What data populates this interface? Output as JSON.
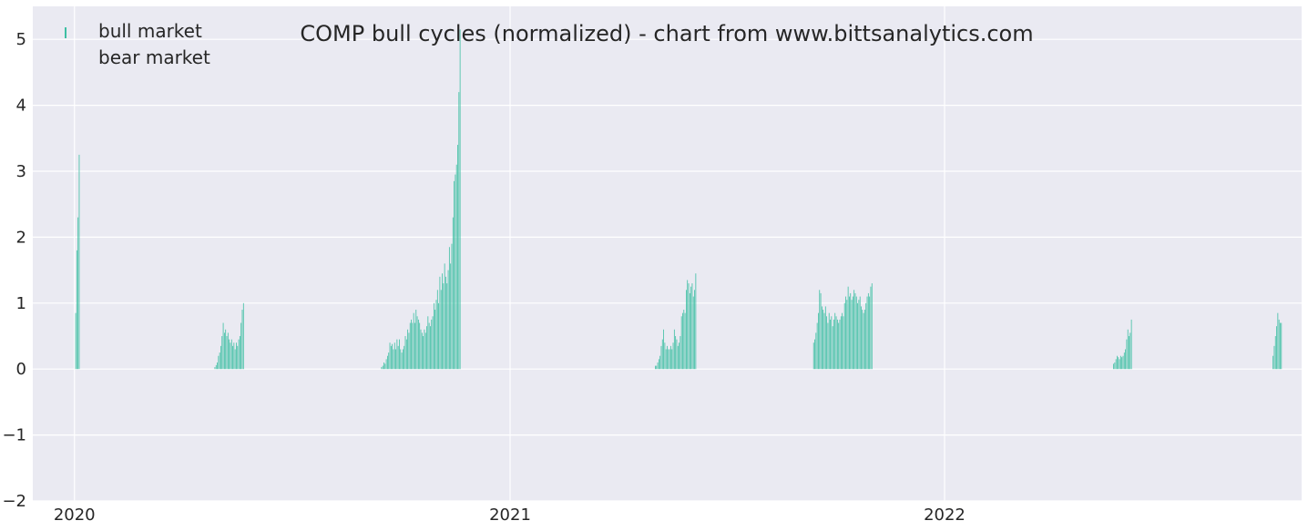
{
  "chart_data": {
    "type": "bar",
    "title": "COMP bull cycles (normalized)  - chart from www.bittsanalytics.com",
    "xlabel": "",
    "ylabel": "",
    "x_axis": {
      "type": "date",
      "range": [
        "2019-11-27",
        "2022-10-28"
      ],
      "ticks": [
        "2020",
        "2021",
        "2022"
      ],
      "tick_dates": [
        "2020-01-01",
        "2021-01-01",
        "2022-01-01"
      ]
    },
    "y_axis": {
      "range": [
        -2,
        5.5
      ],
      "ticks": [
        "−2",
        "−1",
        "0",
        "1",
        "2",
        "3",
        "4",
        "5"
      ],
      "tick_values": [
        -2,
        -1,
        0,
        1,
        2,
        3,
        4,
        5
      ]
    },
    "grid": true,
    "legend": {
      "position": "top-left",
      "entries": [
        "bull market",
        "bear market"
      ]
    },
    "colors": {
      "bull": "#3dbfa3",
      "bear": "#e88a6e",
      "background": "#eaeaf2",
      "grid": "#ffffff"
    },
    "series": [
      {
        "name": "bull market",
        "cycles": [
          {
            "start": "2020-01-02",
            "values": [
              0.85,
              1.8,
              2.3,
              3.25
            ]
          },
          {
            "start": "2020-04-28",
            "values": [
              0.03,
              0.06,
              0.1,
              0.2,
              0.25,
              0.35,
              0.5,
              0.7,
              0.55,
              0.6,
              0.5,
              0.55,
              0.45,
              0.4,
              0.45,
              0.35,
              0.4,
              0.3,
              0.4,
              0.35,
              0.45,
              0.5,
              0.7,
              0.9,
              1.0
            ]
          },
          {
            "start": "2020-09-15",
            "values": [
              0.03,
              0.05,
              0.1,
              0.08,
              0.15,
              0.2,
              0.25,
              0.4,
              0.35,
              0.38,
              0.3,
              0.4,
              0.3,
              0.45,
              0.35,
              0.45,
              0.3,
              0.25,
              0.3,
              0.35,
              0.5,
              0.45,
              0.6,
              0.55,
              0.7,
              0.75,
              0.7,
              0.85,
              0.7,
              0.9,
              0.8,
              0.75,
              0.7,
              0.6,
              0.55,
              0.5,
              0.6,
              0.55,
              0.65,
              0.8,
              0.7,
              0.65,
              0.75,
              0.8,
              1.0,
              0.9,
              1.05,
              1.2,
              1.0,
              1.4,
              1.2,
              1.45,
              1.3,
              1.6,
              1.4,
              1.3,
              1.5,
              1.85,
              1.6,
              1.9,
              2.3,
              2.85,
              2.95,
              3.1,
              3.4,
              4.2,
              5.15
            ]
          },
          {
            "start": "2021-05-03",
            "values": [
              0.05,
              0.05,
              0.1,
              0.15,
              0.2,
              0.35,
              0.45,
              0.6,
              0.4,
              0.3,
              0.35,
              0.3,
              0.3,
              0.35,
              0.3,
              0.4,
              0.6,
              0.5,
              0.45,
              0.35,
              0.4,
              0.5,
              0.8,
              0.85,
              0.9,
              0.85,
              1.2,
              1.35,
              1.3,
              1.15,
              1.25,
              1.3,
              1.1,
              1.2,
              1.45
            ]
          },
          {
            "start": "2021-09-13",
            "values": [
              0.4,
              0.45,
              0.55,
              0.7,
              0.85,
              1.2,
              1.15,
              0.95,
              0.9,
              0.85,
              0.95,
              0.8,
              0.7,
              0.85,
              0.75,
              0.8,
              0.65,
              0.75,
              0.85,
              0.8,
              0.75,
              0.7,
              0.75,
              0.8,
              0.85,
              0.8,
              1.0,
              1.1,
              1.05,
              1.25,
              1.1,
              1.15,
              1.05,
              1.1,
              1.2,
              1.15,
              1.1,
              1.0,
              1.05,
              1.1,
              0.95,
              0.9,
              0.85,
              0.9,
              1.0,
              1.1,
              1.15,
              1.1,
              1.25,
              1.3
            ]
          },
          {
            "start": "2022-05-23",
            "values": [
              0.08,
              0.1,
              0.15,
              0.2,
              0.18,
              0.15,
              0.2,
              0.18,
              0.2,
              0.25,
              0.3,
              0.45,
              0.6,
              0.5,
              0.55,
              0.75
            ]
          },
          {
            "start": "2022-10-04",
            "values": [
              0.2,
              0.35,
              0.5,
              0.65,
              0.85,
              0.75,
              0.7,
              0.7
            ]
          }
        ]
      },
      {
        "name": "bear market",
        "cycles": []
      }
    ]
  }
}
